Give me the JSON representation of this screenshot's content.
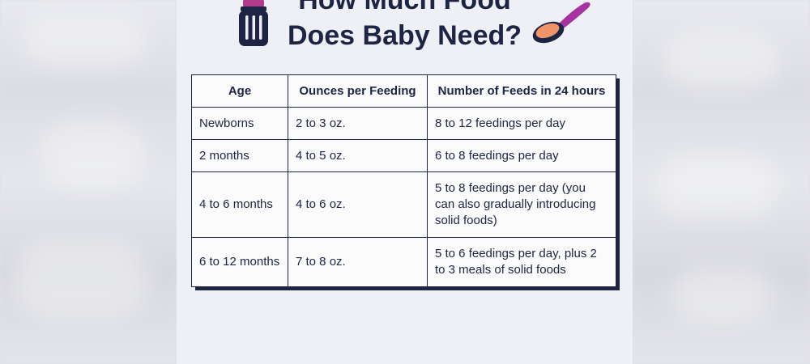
{
  "title": {
    "line1": "How Much Food",
    "line2": "Does Baby Need?"
  },
  "icons": {
    "bottle": "baby-bottle-icon",
    "spoon": "spoon-icon"
  },
  "colors": {
    "text": "#1d2444",
    "panel_bg": "#eef0f6",
    "bottle_cap": "#b23a8c",
    "spoon": "#a533a0",
    "food": "#f0956a"
  },
  "table": {
    "headers": [
      "Age",
      "Ounces per Feeding",
      "Number of Feeds in 24 hours"
    ],
    "rows": [
      [
        "Newborns",
        "2 to 3 oz.",
        "8 to 12 feedings per day"
      ],
      [
        "2 months",
        "4 to 5 oz.",
        "6 to 8 feedings per day"
      ],
      [
        "4 to 6 months",
        "4 to 6 oz.",
        "5 to 8 feedings per day (you can also gradually introducing solid foods)"
      ],
      [
        "6 to 12 months",
        "7 to 8 oz.",
        "5 to 6 feedings per day, plus 2 to 3 meals of solid foods"
      ]
    ]
  }
}
